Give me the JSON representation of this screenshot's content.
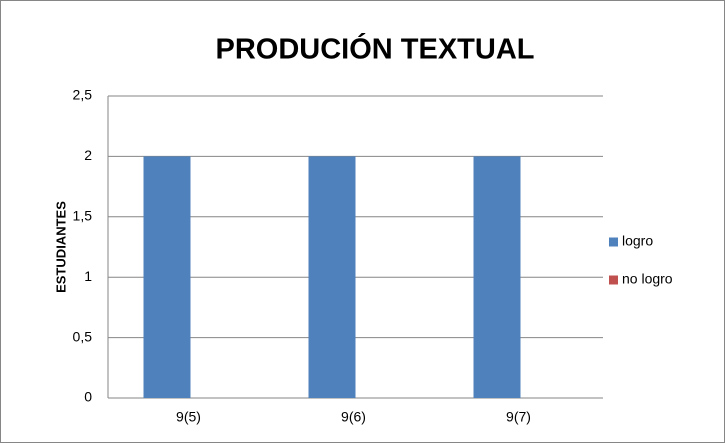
{
  "chart_data": {
    "type": "bar",
    "title": "PRODUCIÓN TEXTUAL",
    "y_label": "ESTUDIANTES",
    "categories": [
      "9(5)",
      "9(6)",
      "9(7)"
    ],
    "series": [
      {
        "name": "logro",
        "color": "#4f81bd",
        "values": [
          2,
          2,
          2
        ]
      },
      {
        "name": "no logro",
        "color": "#c0504d",
        "values": [
          0,
          0,
          0
        ]
      }
    ],
    "ylim": [
      0,
      2.5
    ],
    "yticks": [
      0,
      {
        "value": 0.5,
        "label": "0,5"
      },
      1,
      {
        "value": 1.5,
        "label": "1,5"
      },
      2,
      {
        "value": 2.5,
        "label": "2,5"
      }
    ],
    "grid": true,
    "legend": "right"
  }
}
